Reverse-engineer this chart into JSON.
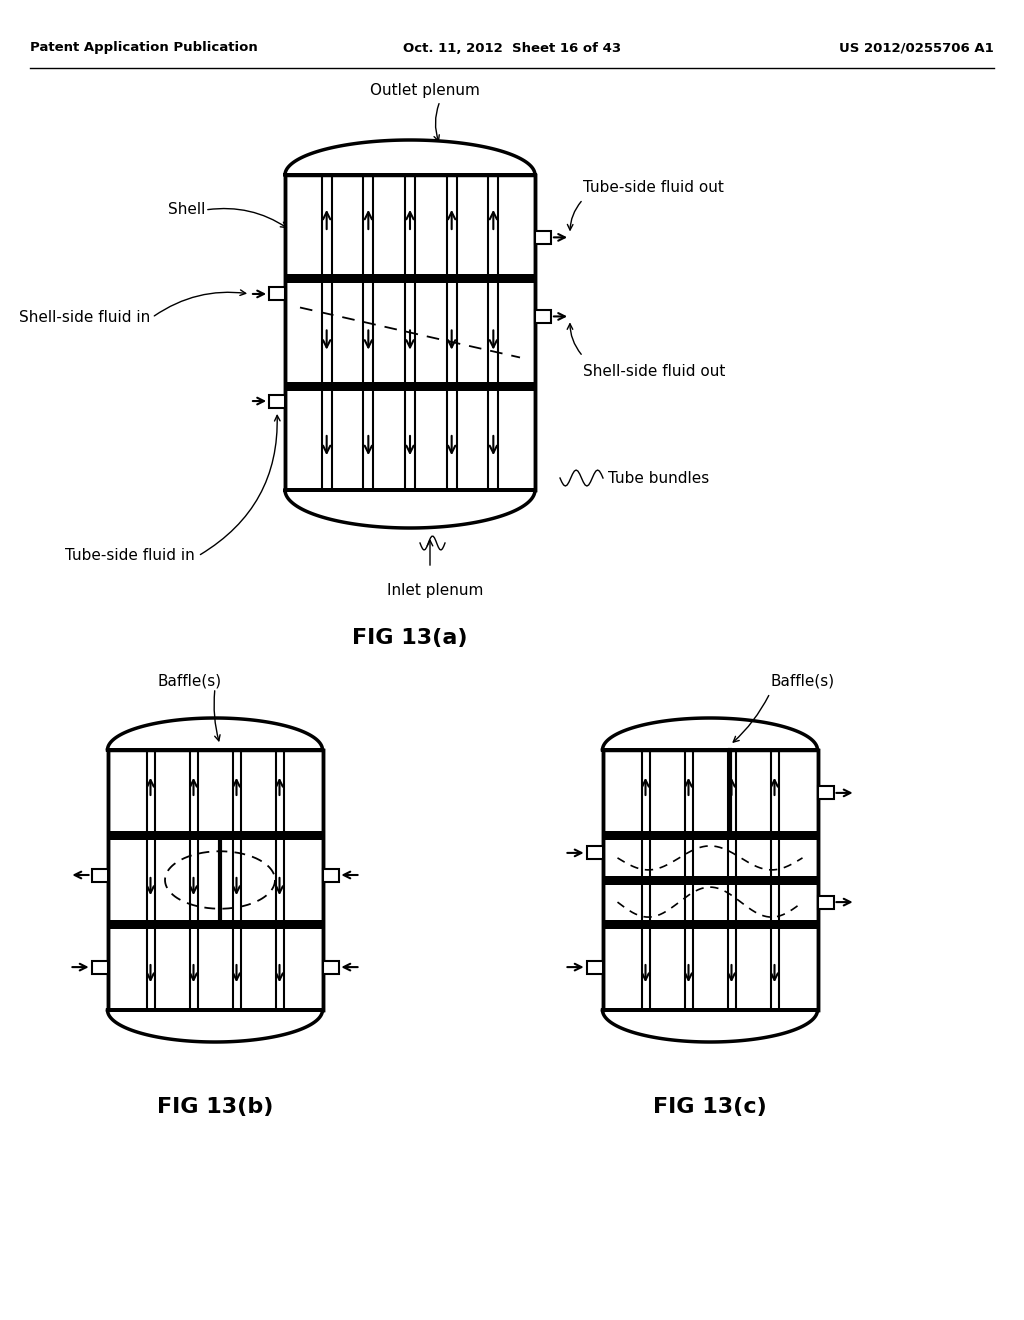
{
  "bg_color": "#ffffff",
  "text_color": "#000000",
  "header_left": "Patent Application Publication",
  "header_center": "Oct. 11, 2012  Sheet 16 of 43",
  "header_right": "US 2012/0255706 A1",
  "fig_a_label": "FIG 13(a)",
  "fig_b_label": "FIG 13(b)",
  "fig_c_label": "FIG 13(c)",
  "outlet_plenum": "Outlet plenum",
  "shell": "Shell",
  "shell_side_fluid_in": "Shell-side fluid in",
  "tube_side_fluid_out": "Tube-side fluid out",
  "shell_side_fluid_out": "Shell-side fluid out",
  "tube_bundles": "Tube bundles",
  "tube_side_fluid_in": "Tube-side fluid in",
  "inlet_plenum": "Inlet plenum",
  "baffles_b": "Baffle(s)",
  "baffles_c": "Baffle(s)"
}
